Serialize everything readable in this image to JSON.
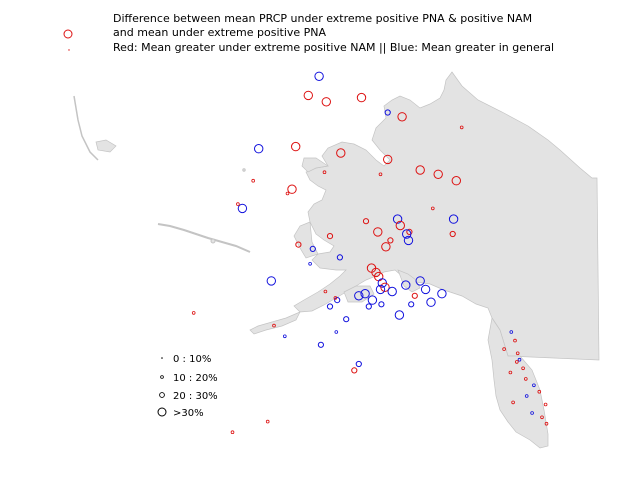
{
  "title": {
    "line1": "Difference between mean PRCP under extreme positive PNA & positive NAM",
    "line2": "and mean under extreme positive PNA",
    "line3": "Red: Mean greater under extreme positive NAM || Blue: Mean greater in general"
  },
  "legend": {
    "items": [
      {
        "label": "0 : 10%",
        "size_class": 1
      },
      {
        "label": "10 : 20%",
        "size_class": 2
      },
      {
        "label": "20 : 30%",
        "size_class": 3
      },
      {
        "label": ">30%",
        "size_class": 4
      }
    ]
  },
  "colors": {
    "land": "#e3e3e3",
    "coast": "#c4c4c4",
    "red": "#dd1111",
    "blue": "#1111dd"
  },
  "stations": {
    "lon_range": [
      -170,
      -129
    ],
    "lat_range": [
      54,
      71.5
    ],
    "points": [
      {
        "lon": -156.8,
        "lat": 71.3,
        "color": "blue",
        "size": 4
      },
      {
        "lon": -158.0,
        "lat": 70.4,
        "color": "red",
        "size": 4
      },
      {
        "lon": -156.0,
        "lat": 70.1,
        "color": "red",
        "size": 4
      },
      {
        "lon": -152.1,
        "lat": 70.3,
        "color": "red",
        "size": 4
      },
      {
        "lon": -149.2,
        "lat": 69.6,
        "color": "blue",
        "size": 3
      },
      {
        "lon": -147.6,
        "lat": 69.4,
        "color": "red",
        "size": 4
      },
      {
        "lon": -163.5,
        "lat": 67.9,
        "color": "blue",
        "size": 4
      },
      {
        "lon": -159.4,
        "lat": 68.0,
        "color": "red",
        "size": 4
      },
      {
        "lon": -154.4,
        "lat": 67.7,
        "color": "red",
        "size": 4
      },
      {
        "lon": -149.2,
        "lat": 67.4,
        "color": "red",
        "size": 4
      },
      {
        "lon": -145.6,
        "lat": 66.9,
        "color": "red",
        "size": 4
      },
      {
        "lon": -143.6,
        "lat": 66.7,
        "color": "red",
        "size": 4
      },
      {
        "lon": -141.6,
        "lat": 66.4,
        "color": "red",
        "size": 4
      },
      {
        "lon": -159.8,
        "lat": 66.0,
        "color": "red",
        "size": 4
      },
      {
        "lon": -156.2,
        "lat": 66.8,
        "color": "red",
        "size": 2
      },
      {
        "lon": -165.3,
        "lat": 65.1,
        "color": "blue",
        "size": 4
      },
      {
        "lon": -141.9,
        "lat": 64.6,
        "color": "blue",
        "size": 4
      },
      {
        "lon": -151.6,
        "lat": 64.5,
        "color": "red",
        "size": 3
      },
      {
        "lon": -150.3,
        "lat": 64.0,
        "color": "red",
        "size": 4
      },
      {
        "lon": -148.1,
        "lat": 64.6,
        "color": "blue",
        "size": 4
      },
      {
        "lon": -147.8,
        "lat": 64.3,
        "color": "red",
        "size": 4
      },
      {
        "lon": -146.8,
        "lat": 64.0,
        "color": "red",
        "size": 3
      },
      {
        "lon": -147.1,
        "lat": 63.9,
        "color": "blue",
        "size": 4
      },
      {
        "lon": -146.9,
        "lat": 63.6,
        "color": "blue",
        "size": 4
      },
      {
        "lon": -142.0,
        "lat": 63.9,
        "color": "red",
        "size": 3
      },
      {
        "lon": -148.9,
        "lat": 63.6,
        "color": "red",
        "size": 3
      },
      {
        "lon": -149.4,
        "lat": 63.3,
        "color": "red",
        "size": 4
      },
      {
        "lon": -155.6,
        "lat": 63.8,
        "color": "red",
        "size": 3
      },
      {
        "lon": -157.5,
        "lat": 63.2,
        "color": "blue",
        "size": 3
      },
      {
        "lon": -154.5,
        "lat": 62.8,
        "color": "blue",
        "size": 3
      },
      {
        "lon": -151.0,
        "lat": 62.3,
        "color": "red",
        "size": 4
      },
      {
        "lon": -150.5,
        "lat": 62.1,
        "color": "red",
        "size": 4
      },
      {
        "lon": -150.2,
        "lat": 61.9,
        "color": "red",
        "size": 4
      },
      {
        "lon": -149.8,
        "lat": 61.6,
        "color": "blue",
        "size": 4
      },
      {
        "lon": -149.5,
        "lat": 61.4,
        "color": "red",
        "size": 4
      },
      {
        "lon": -148.7,
        "lat": 61.2,
        "color": "blue",
        "size": 4
      },
      {
        "lon": -147.2,
        "lat": 61.5,
        "color": "blue",
        "size": 4
      },
      {
        "lon": -145.6,
        "lat": 61.7,
        "color": "blue",
        "size": 4
      },
      {
        "lon": -145.0,
        "lat": 61.3,
        "color": "blue",
        "size": 4
      },
      {
        "lon": -144.4,
        "lat": 60.7,
        "color": "blue",
        "size": 4
      },
      {
        "lon": -143.2,
        "lat": 61.1,
        "color": "blue",
        "size": 4
      },
      {
        "lon": -146.6,
        "lat": 60.6,
        "color": "blue",
        "size": 3
      },
      {
        "lon": -146.2,
        "lat": 61.0,
        "color": "red",
        "size": 3
      },
      {
        "lon": -151.7,
        "lat": 61.1,
        "color": "blue",
        "size": 4
      },
      {
        "lon": -152.4,
        "lat": 61.0,
        "color": "blue",
        "size": 4
      },
      {
        "lon": -150.9,
        "lat": 60.8,
        "color": "blue",
        "size": 4
      },
      {
        "lon": -151.3,
        "lat": 60.5,
        "color": "blue",
        "size": 3
      },
      {
        "lon": -150.0,
        "lat": 61.3,
        "color": "blue",
        "size": 4
      },
      {
        "lon": -149.9,
        "lat": 60.6,
        "color": "blue",
        "size": 3
      },
      {
        "lon": -154.8,
        "lat": 60.8,
        "color": "blue",
        "size": 3
      },
      {
        "lon": -155.6,
        "lat": 60.5,
        "color": "blue",
        "size": 3
      },
      {
        "lon": -156.1,
        "lat": 61.2,
        "color": "red",
        "size": 2
      },
      {
        "lon": -153.8,
        "lat": 59.9,
        "color": "blue",
        "size": 3
      },
      {
        "lon": -156.6,
        "lat": 58.7,
        "color": "blue",
        "size": 3
      },
      {
        "lon": -155.0,
        "lat": 60.9,
        "color": "red",
        "size": 2
      },
      {
        "lon": -147.9,
        "lat": 60.1,
        "color": "blue",
        "size": 4
      },
      {
        "lon": -162.1,
        "lat": 61.7,
        "color": "blue",
        "size": 4
      },
      {
        "lon": -159.1,
        "lat": 63.4,
        "color": "red",
        "size": 3
      },
      {
        "lon": -157.8,
        "lat": 62.5,
        "color": "blue",
        "size": 2
      },
      {
        "lon": -152.9,
        "lat": 57.5,
        "color": "red",
        "size": 3
      },
      {
        "lon": -152.4,
        "lat": 57.8,
        "color": "blue",
        "size": 3
      },
      {
        "lon": -161.8,
        "lat": 59.6,
        "color": "red",
        "size": 2
      },
      {
        "lon": -160.6,
        "lat": 59.1,
        "color": "blue",
        "size": 2
      },
      {
        "lon": -154.9,
        "lat": 59.3,
        "color": "blue",
        "size": 2
      },
      {
        "lon": -141.0,
        "lat": 68.9,
        "color": "red",
        "size": 2
      },
      {
        "lon": -150.0,
        "lat": 66.7,
        "color": "red",
        "size": 2
      },
      {
        "lon": -144.2,
        "lat": 65.1,
        "color": "red",
        "size": 2
      },
      {
        "lon": -165.8,
        "lat": 65.3,
        "color": "red",
        "size": 2
      },
      {
        "lon": -164.1,
        "lat": 66.4,
        "color": "red",
        "size": 2
      },
      {
        "lon": -160.3,
        "lat": 65.8,
        "color": "red",
        "size": 2
      },
      {
        "lon": -170.7,
        "lat": 60.2,
        "color": "red",
        "size": 2
      },
      {
        "lon": -166.4,
        "lat": 54.6,
        "color": "red",
        "size": 2
      },
      {
        "lon": -162.5,
        "lat": 55.1,
        "color": "red",
        "size": 2
      },
      {
        "lon": -135.5,
        "lat": 59.3,
        "color": "blue",
        "size": 2
      },
      {
        "lon": -135.1,
        "lat": 58.9,
        "color": "red",
        "size": 2
      },
      {
        "lon": -134.8,
        "lat": 58.3,
        "color": "red",
        "size": 2
      },
      {
        "lon": -134.6,
        "lat": 58.0,
        "color": "blue",
        "size": 2
      },
      {
        "lon": -134.2,
        "lat": 57.6,
        "color": "red",
        "size": 2
      },
      {
        "lon": -135.6,
        "lat": 57.4,
        "color": "red",
        "size": 2
      },
      {
        "lon": -133.9,
        "lat": 57.1,
        "color": "red",
        "size": 2
      },
      {
        "lon": -133.0,
        "lat": 56.8,
        "color": "blue",
        "size": 2
      },
      {
        "lon": -132.4,
        "lat": 56.5,
        "color": "red",
        "size": 2
      },
      {
        "lon": -133.8,
        "lat": 56.3,
        "color": "blue",
        "size": 2
      },
      {
        "lon": -131.7,
        "lat": 55.9,
        "color": "red",
        "size": 2
      },
      {
        "lon": -133.2,
        "lat": 55.5,
        "color": "blue",
        "size": 2
      },
      {
        "lon": -132.1,
        "lat": 55.3,
        "color": "red",
        "size": 2
      },
      {
        "lon": -131.6,
        "lat": 55.0,
        "color": "red",
        "size": 2
      },
      {
        "lon": -134.9,
        "lat": 57.9,
        "color": "red",
        "size": 2
      },
      {
        "lon": -136.3,
        "lat": 58.5,
        "color": "red",
        "size": 2
      },
      {
        "lon": -135.3,
        "lat": 56.0,
        "color": "red",
        "size": 2
      }
    ]
  }
}
